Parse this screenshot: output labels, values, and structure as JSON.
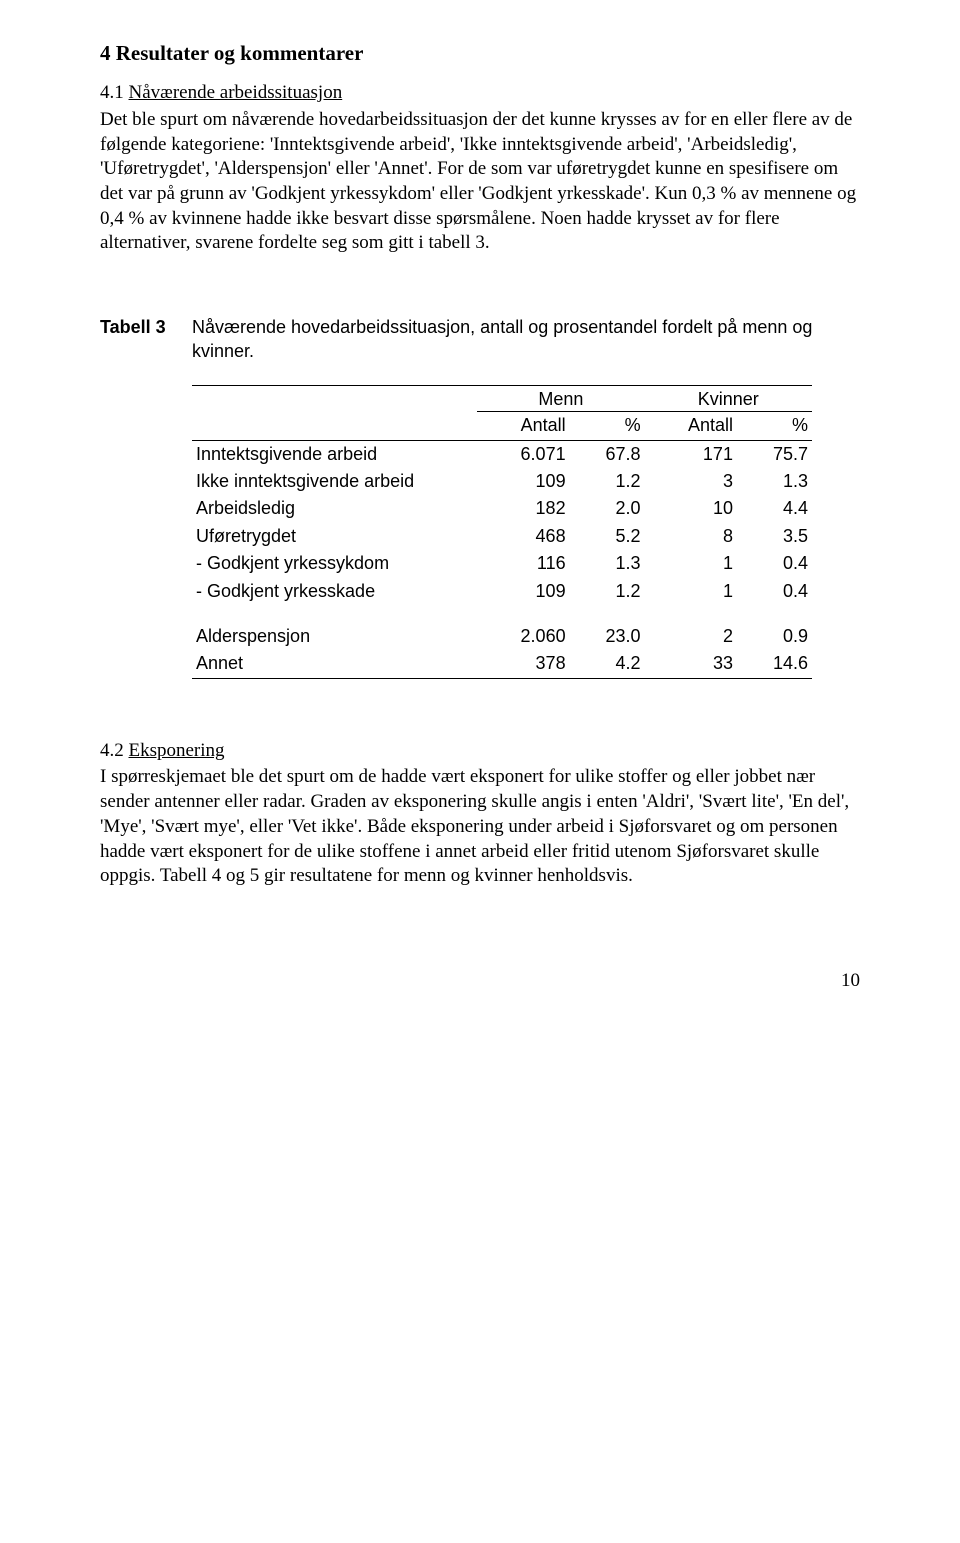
{
  "text_color": "#000000",
  "background_color": "#ffffff",
  "font_family_body": "Times New Roman",
  "font_family_table": "Arial",
  "font_size_body_pt": 14,
  "font_size_table_pt": 13,
  "section4": {
    "heading": "4 Resultater og kommentarer",
    "sub1": {
      "number": "4.1 ",
      "title": "Nåværende arbeidssituasjon",
      "para": "Det ble spurt om nåværende hovedarbeidssituasjon der det kunne krysses av for en eller flere av de følgende kategoriene: 'Inntektsgivende arbeid', 'Ikke inntektsgivende arbeid', 'Arbeidsledig', 'Uføretrygdet', 'Alderspensjon' eller 'Annet'. For de som var uføretrygdet kunne en spesifisere om det var på grunn av 'Godkjent yrkessykdom' eller 'Godkjent yrkesskade'. Kun 0,3 % av mennene og 0,4 % av kvinnene hadde ikke besvart disse spørsmålene. Noen hadde krysset av for flere alternativer, svarene fordelte seg som gitt i tabell 3."
    },
    "sub2": {
      "number": "4.2 ",
      "title": "Eksponering",
      "para": "I spørreskjemaet ble det spurt om de hadde vært eksponert for ulike stoffer og eller jobbet nær sender antenner eller radar. Graden av eksponering skulle angis i enten 'Aldri', 'Svært lite', 'En del', 'Mye', 'Svært mye', eller 'Vet ikke'. Både eksponering under arbeid i Sjøforsvaret og om personen hadde vært eksponert for de ulike stoffene i annet arbeid eller fritid utenom Sjøforsvaret skulle oppgis. Tabell 4 og 5 gir resultatene for menn og kvinner henholdsvis."
    }
  },
  "table3": {
    "label": "Tabell 3",
    "caption": "Nåværende hovedarbeidssituasjon, antall og prosentandel fordelt på menn og kvinner.",
    "group_headers": {
      "g1": "Menn",
      "g2": "Kvinner"
    },
    "sub_headers": {
      "c1": "Antall",
      "c2": "%",
      "c3": "Antall",
      "c4": "%"
    },
    "col_align": [
      "left",
      "right",
      "right",
      "right",
      "right"
    ],
    "rule_color": "#000000",
    "rows_a": [
      {
        "label": "Inntektsgivende arbeid",
        "c1": "6.071",
        "c2": "67.8",
        "c3": "171",
        "c4": "75.7"
      },
      {
        "label": "Ikke inntektsgivende arbeid",
        "c1": "109",
        "c2": "1.2",
        "c3": "3",
        "c4": "1.3"
      },
      {
        "label": "Arbeidsledig",
        "c1": "182",
        "c2": "2.0",
        "c3": "10",
        "c4": "4.4"
      },
      {
        "label": "Uføretrygdet",
        "c1": "468",
        "c2": "5.2",
        "c3": "8",
        "c4": "3.5"
      },
      {
        "label": "- Godkjent yrkessykdom",
        "c1": "116",
        "c2": "1.3",
        "c3": "1",
        "c4": "0.4"
      },
      {
        "label": "- Godkjent yrkesskade",
        "c1": "109",
        "c2": "1.2",
        "c3": "1",
        "c4": "0.4"
      }
    ],
    "rows_b": [
      {
        "label": "Alderspensjon",
        "c1": "2.060",
        "c2": "23.0",
        "c3": "2",
        "c4": "0.9"
      },
      {
        "label": "Annet",
        "c1": "378",
        "c2": "4.2",
        "c3": "33",
        "c4": "14.6"
      }
    ]
  },
  "page_number": "10"
}
